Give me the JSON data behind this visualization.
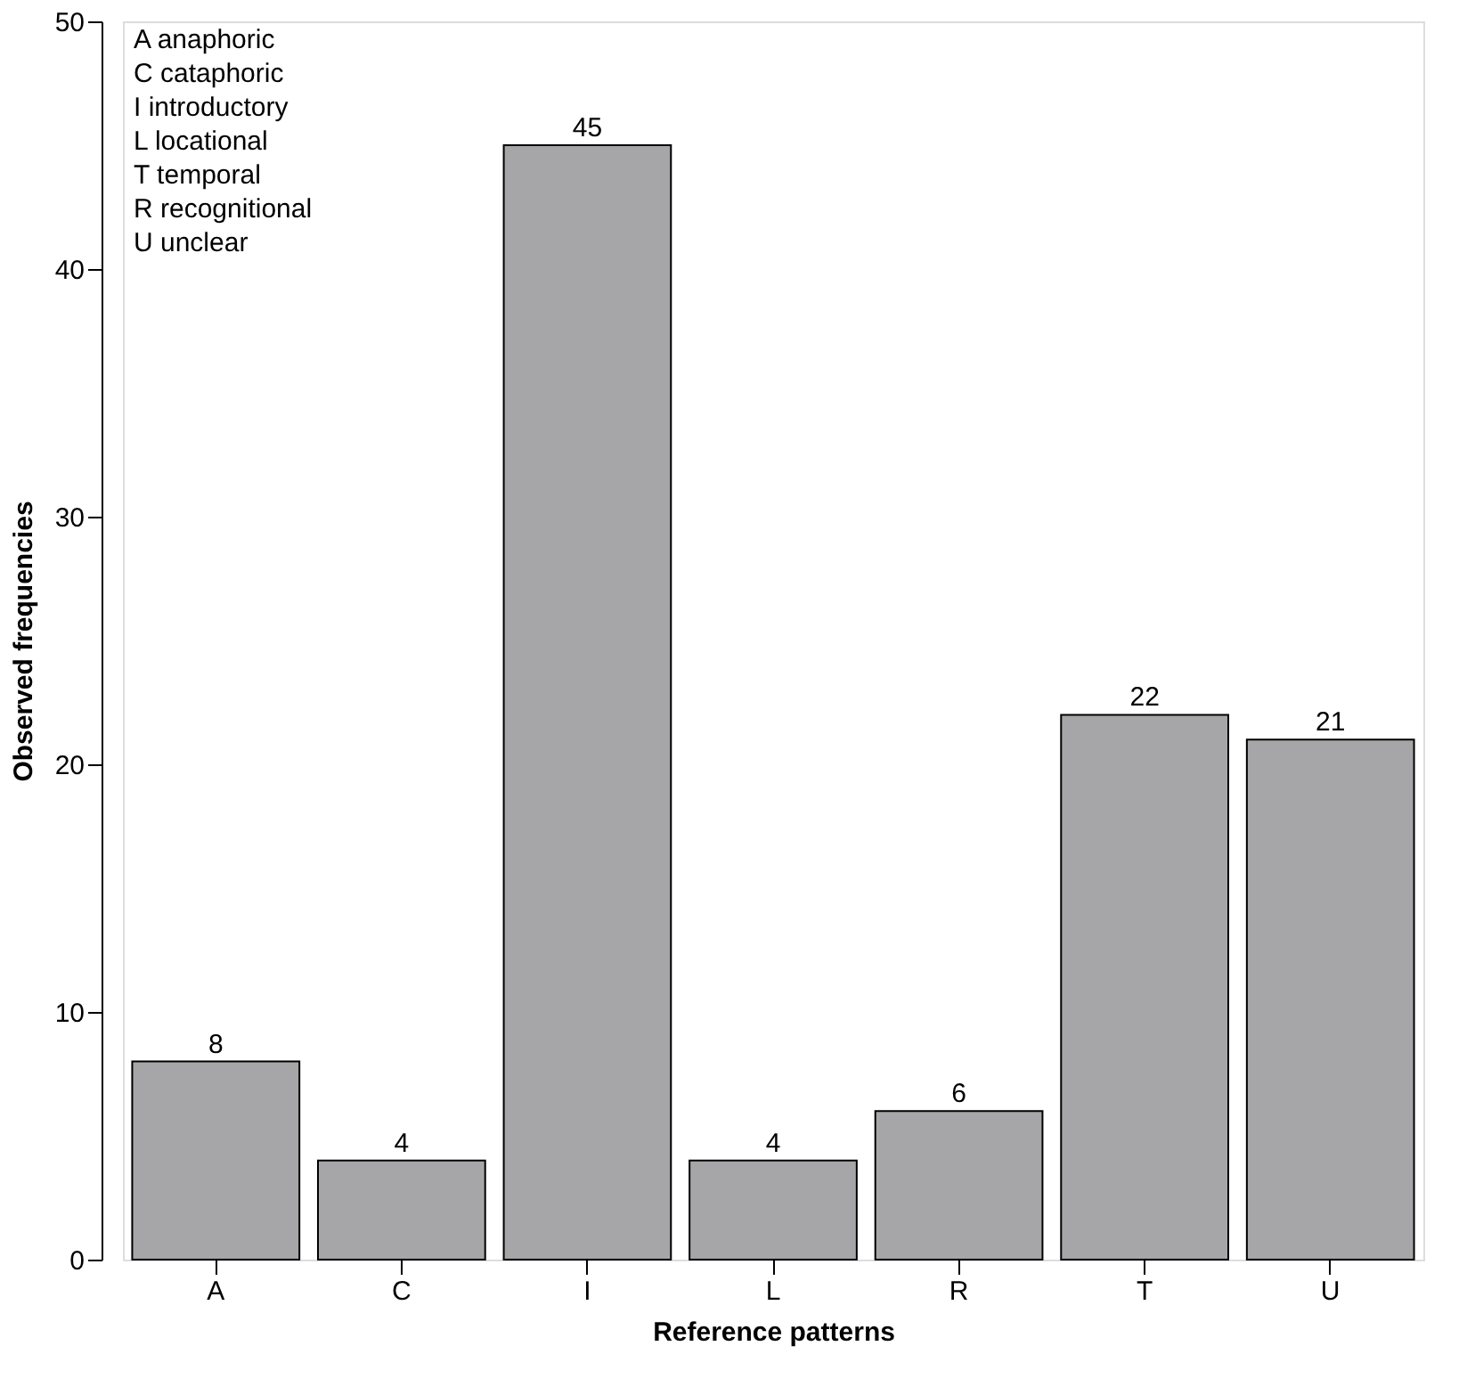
{
  "chart_data": {
    "type": "bar",
    "categories": [
      "A",
      "C",
      "I",
      "L",
      "R",
      "T",
      "U"
    ],
    "values": [
      8,
      4,
      45,
      4,
      6,
      22,
      21
    ],
    "color": "#a6a6a8",
    "xlabel": "Reference patterns",
    "ylabel": "Observed frequencies",
    "ylim": [
      0,
      50
    ],
    "yticks": [
      0,
      10,
      20,
      30,
      40,
      50
    ],
    "data_labels": true,
    "grid": false,
    "annotations": [
      "A  anaphoric",
      "C  cataphoric",
      "I   introductory",
      "L   locational",
      "T   temporal",
      "R   recognitional",
      "U   unclear"
    ]
  }
}
